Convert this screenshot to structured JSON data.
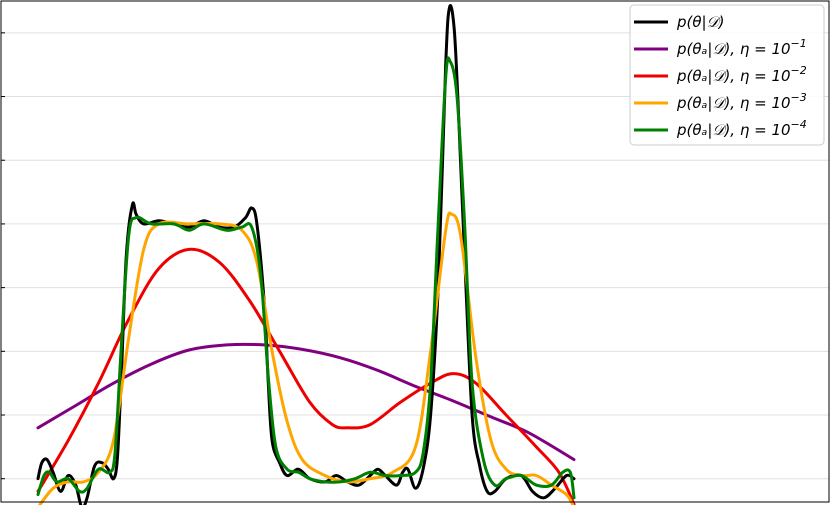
{
  "chart_data": {
    "type": "line",
    "title": "",
    "xlabel": "",
    "ylabel": "",
    "xlim": [
      0,
      1
    ],
    "ylim": [
      -0.35,
      7.5
    ],
    "grid": "horizontal",
    "legend_position": "top-right",
    "series": [
      {
        "name": "p(θ|𝒟)",
        "color": "#000000",
        "points": [
          [
            0.0,
            0.0
          ],
          [
            0.005,
            0.25
          ],
          [
            0.012,
            0.3
          ],
          [
            0.02,
            0.1
          ],
          [
            0.03,
            -0.2
          ],
          [
            0.04,
            0.05
          ],
          [
            0.05,
            -0.1
          ],
          [
            0.058,
            -0.45
          ],
          [
            0.065,
            -0.3
          ],
          [
            0.075,
            0.2
          ],
          [
            0.085,
            0.25
          ],
          [
            0.093,
            0.15
          ],
          [
            0.1,
            0.0
          ],
          [
            0.105,
            0.3
          ],
          [
            0.11,
            1.5
          ],
          [
            0.117,
            3.5
          ],
          [
            0.125,
            4.3
          ],
          [
            0.13,
            4.15
          ],
          [
            0.14,
            4.0
          ],
          [
            0.16,
            4.05
          ],
          [
            0.18,
            4.0
          ],
          [
            0.2,
            3.95
          ],
          [
            0.22,
            4.05
          ],
          [
            0.24,
            3.95
          ],
          [
            0.26,
            3.95
          ],
          [
            0.275,
            4.1
          ],
          [
            0.283,
            4.25
          ],
          [
            0.29,
            4.0
          ],
          [
            0.3,
            2.7
          ],
          [
            0.305,
            1.5
          ],
          [
            0.31,
            0.6
          ],
          [
            0.32,
            0.25
          ],
          [
            0.33,
            0.05
          ],
          [
            0.345,
            0.15
          ],
          [
            0.36,
            0.0
          ],
          [
            0.38,
            -0.05
          ],
          [
            0.395,
            0.05
          ],
          [
            0.41,
            -0.05
          ],
          [
            0.425,
            -0.1
          ],
          [
            0.44,
            0.05
          ],
          [
            0.45,
            0.15
          ],
          [
            0.46,
            0.05
          ],
          [
            0.475,
            -0.1
          ],
          [
            0.483,
            0.1
          ],
          [
            0.49,
            0.15
          ],
          [
            0.5,
            -0.15
          ],
          [
            0.51,
            0.15
          ],
          [
            0.52,
            1.0
          ],
          [
            0.53,
            3.0
          ],
          [
            0.54,
            6.5
          ],
          [
            0.545,
            7.4
          ],
          [
            0.551,
            7.1
          ],
          [
            0.556,
            6.0
          ],
          [
            0.565,
            3.5
          ],
          [
            0.575,
            1.0
          ],
          [
            0.585,
            0.2
          ],
          [
            0.595,
            -0.2
          ],
          [
            0.605,
            -0.2
          ],
          [
            0.62,
            0.0
          ],
          [
            0.64,
            0.05
          ],
          [
            0.655,
            -0.2
          ],
          [
            0.67,
            -0.3
          ],
          [
            0.685,
            -0.15
          ],
          [
            0.7,
            0.05
          ],
          [
            0.71,
            0.0
          ]
        ]
      },
      {
        "name": "p(θₐ|𝒟), η = 10⁻¹",
        "color": "#800080",
        "points": [
          [
            0.0,
            0.8
          ],
          [
            0.05,
            1.15
          ],
          [
            0.1,
            1.5
          ],
          [
            0.15,
            1.8
          ],
          [
            0.2,
            2.02
          ],
          [
            0.25,
            2.1
          ],
          [
            0.3,
            2.1
          ],
          [
            0.35,
            2.03
          ],
          [
            0.4,
            1.9
          ],
          [
            0.45,
            1.7
          ],
          [
            0.5,
            1.45
          ],
          [
            0.55,
            1.22
          ],
          [
            0.6,
            0.97
          ],
          [
            0.65,
            0.72
          ],
          [
            0.71,
            0.3
          ]
        ]
      },
      {
        "name": "p(θₐ|𝒟), η = 10⁻²",
        "color": "#ee0000",
        "points": [
          [
            0.0,
            -0.2
          ],
          [
            0.04,
            0.6
          ],
          [
            0.08,
            1.5
          ],
          [
            0.12,
            2.5
          ],
          [
            0.16,
            3.3
          ],
          [
            0.2,
            3.6
          ],
          [
            0.24,
            3.4
          ],
          [
            0.28,
            2.8
          ],
          [
            0.32,
            2.0
          ],
          [
            0.36,
            1.2
          ],
          [
            0.39,
            0.85
          ],
          [
            0.41,
            0.8
          ],
          [
            0.44,
            0.85
          ],
          [
            0.48,
            1.2
          ],
          [
            0.52,
            1.5
          ],
          [
            0.55,
            1.65
          ],
          [
            0.58,
            1.5
          ],
          [
            0.62,
            1.0
          ],
          [
            0.66,
            0.5
          ],
          [
            0.69,
            0.1
          ],
          [
            0.71,
            -0.4
          ]
        ]
      },
      {
        "name": "p(θₐ|𝒟), η = 10⁻³",
        "color": "#ffa500",
        "points": [
          [
            0.0,
            -0.45
          ],
          [
            0.02,
            -0.15
          ],
          [
            0.04,
            -0.05
          ],
          [
            0.06,
            -0.05
          ],
          [
            0.08,
            0.1
          ],
          [
            0.1,
            0.6
          ],
          [
            0.12,
            2.2
          ],
          [
            0.14,
            3.6
          ],
          [
            0.16,
            4.0
          ],
          [
            0.2,
            4.0
          ],
          [
            0.24,
            4.0
          ],
          [
            0.27,
            3.9
          ],
          [
            0.29,
            3.4
          ],
          [
            0.31,
            2.0
          ],
          [
            0.33,
            0.9
          ],
          [
            0.35,
            0.3
          ],
          [
            0.38,
            0.05
          ],
          [
            0.41,
            -0.05
          ],
          [
            0.44,
            0.0
          ],
          [
            0.47,
            0.1
          ],
          [
            0.5,
            0.5
          ],
          [
            0.52,
            2.0
          ],
          [
            0.54,
            3.9
          ],
          [
            0.548,
            4.15
          ],
          [
            0.56,
            3.8
          ],
          [
            0.58,
            1.9
          ],
          [
            0.6,
            0.6
          ],
          [
            0.62,
            0.15
          ],
          [
            0.64,
            0.05
          ],
          [
            0.66,
            0.05
          ],
          [
            0.68,
            -0.1
          ],
          [
            0.7,
            -0.25
          ],
          [
            0.71,
            -0.45
          ]
        ]
      },
      {
        "name": "p(θₐ|𝒟), η = 10⁻⁴",
        "color": "#008000",
        "points": [
          [
            0.0,
            -0.25
          ],
          [
            0.008,
            0.05
          ],
          [
            0.015,
            0.1
          ],
          [
            0.025,
            -0.05
          ],
          [
            0.04,
            0.0
          ],
          [
            0.055,
            -0.2
          ],
          [
            0.065,
            -0.15
          ],
          [
            0.08,
            0.15
          ],
          [
            0.095,
            0.1
          ],
          [
            0.102,
            0.4
          ],
          [
            0.11,
            2.0
          ],
          [
            0.12,
            3.8
          ],
          [
            0.13,
            4.1
          ],
          [
            0.15,
            4.0
          ],
          [
            0.18,
            4.0
          ],
          [
            0.2,
            3.9
          ],
          [
            0.22,
            4.0
          ],
          [
            0.25,
            3.9
          ],
          [
            0.27,
            3.95
          ],
          [
            0.283,
            3.95
          ],
          [
            0.295,
            3.2
          ],
          [
            0.305,
            1.6
          ],
          [
            0.315,
            0.5
          ],
          [
            0.33,
            0.15
          ],
          [
            0.345,
            0.1
          ],
          [
            0.36,
            0.0
          ],
          [
            0.38,
            -0.05
          ],
          [
            0.4,
            -0.05
          ],
          [
            0.42,
            0.0
          ],
          [
            0.44,
            0.1
          ],
          [
            0.46,
            0.05
          ],
          [
            0.48,
            0.05
          ],
          [
            0.5,
            0.1
          ],
          [
            0.51,
            0.4
          ],
          [
            0.52,
            1.5
          ],
          [
            0.53,
            4.0
          ],
          [
            0.54,
            6.3
          ],
          [
            0.546,
            6.55
          ],
          [
            0.555,
            6.0
          ],
          [
            0.565,
            4.0
          ],
          [
            0.575,
            1.5
          ],
          [
            0.59,
            0.3
          ],
          [
            0.605,
            -0.1
          ],
          [
            0.62,
            0.0
          ],
          [
            0.64,
            0.05
          ],
          [
            0.66,
            -0.1
          ],
          [
            0.68,
            -0.1
          ],
          [
            0.695,
            0.1
          ],
          [
            0.705,
            0.1
          ],
          [
            0.71,
            -0.3
          ]
        ]
      }
    ],
    "legend": [
      {
        "main": "p(θ|𝒟)",
        "sup": ""
      },
      {
        "main": "p(θₐ|𝒟), η = 10",
        "sup": "−1"
      },
      {
        "main": "p(θₐ|𝒟), η = 10",
        "sup": "−2"
      },
      {
        "main": "p(θₐ|𝒟), η = 10",
        "sup": "−3"
      },
      {
        "main": "p(θₐ|𝒟), η = 10",
        "sup": "−4"
      }
    ]
  }
}
